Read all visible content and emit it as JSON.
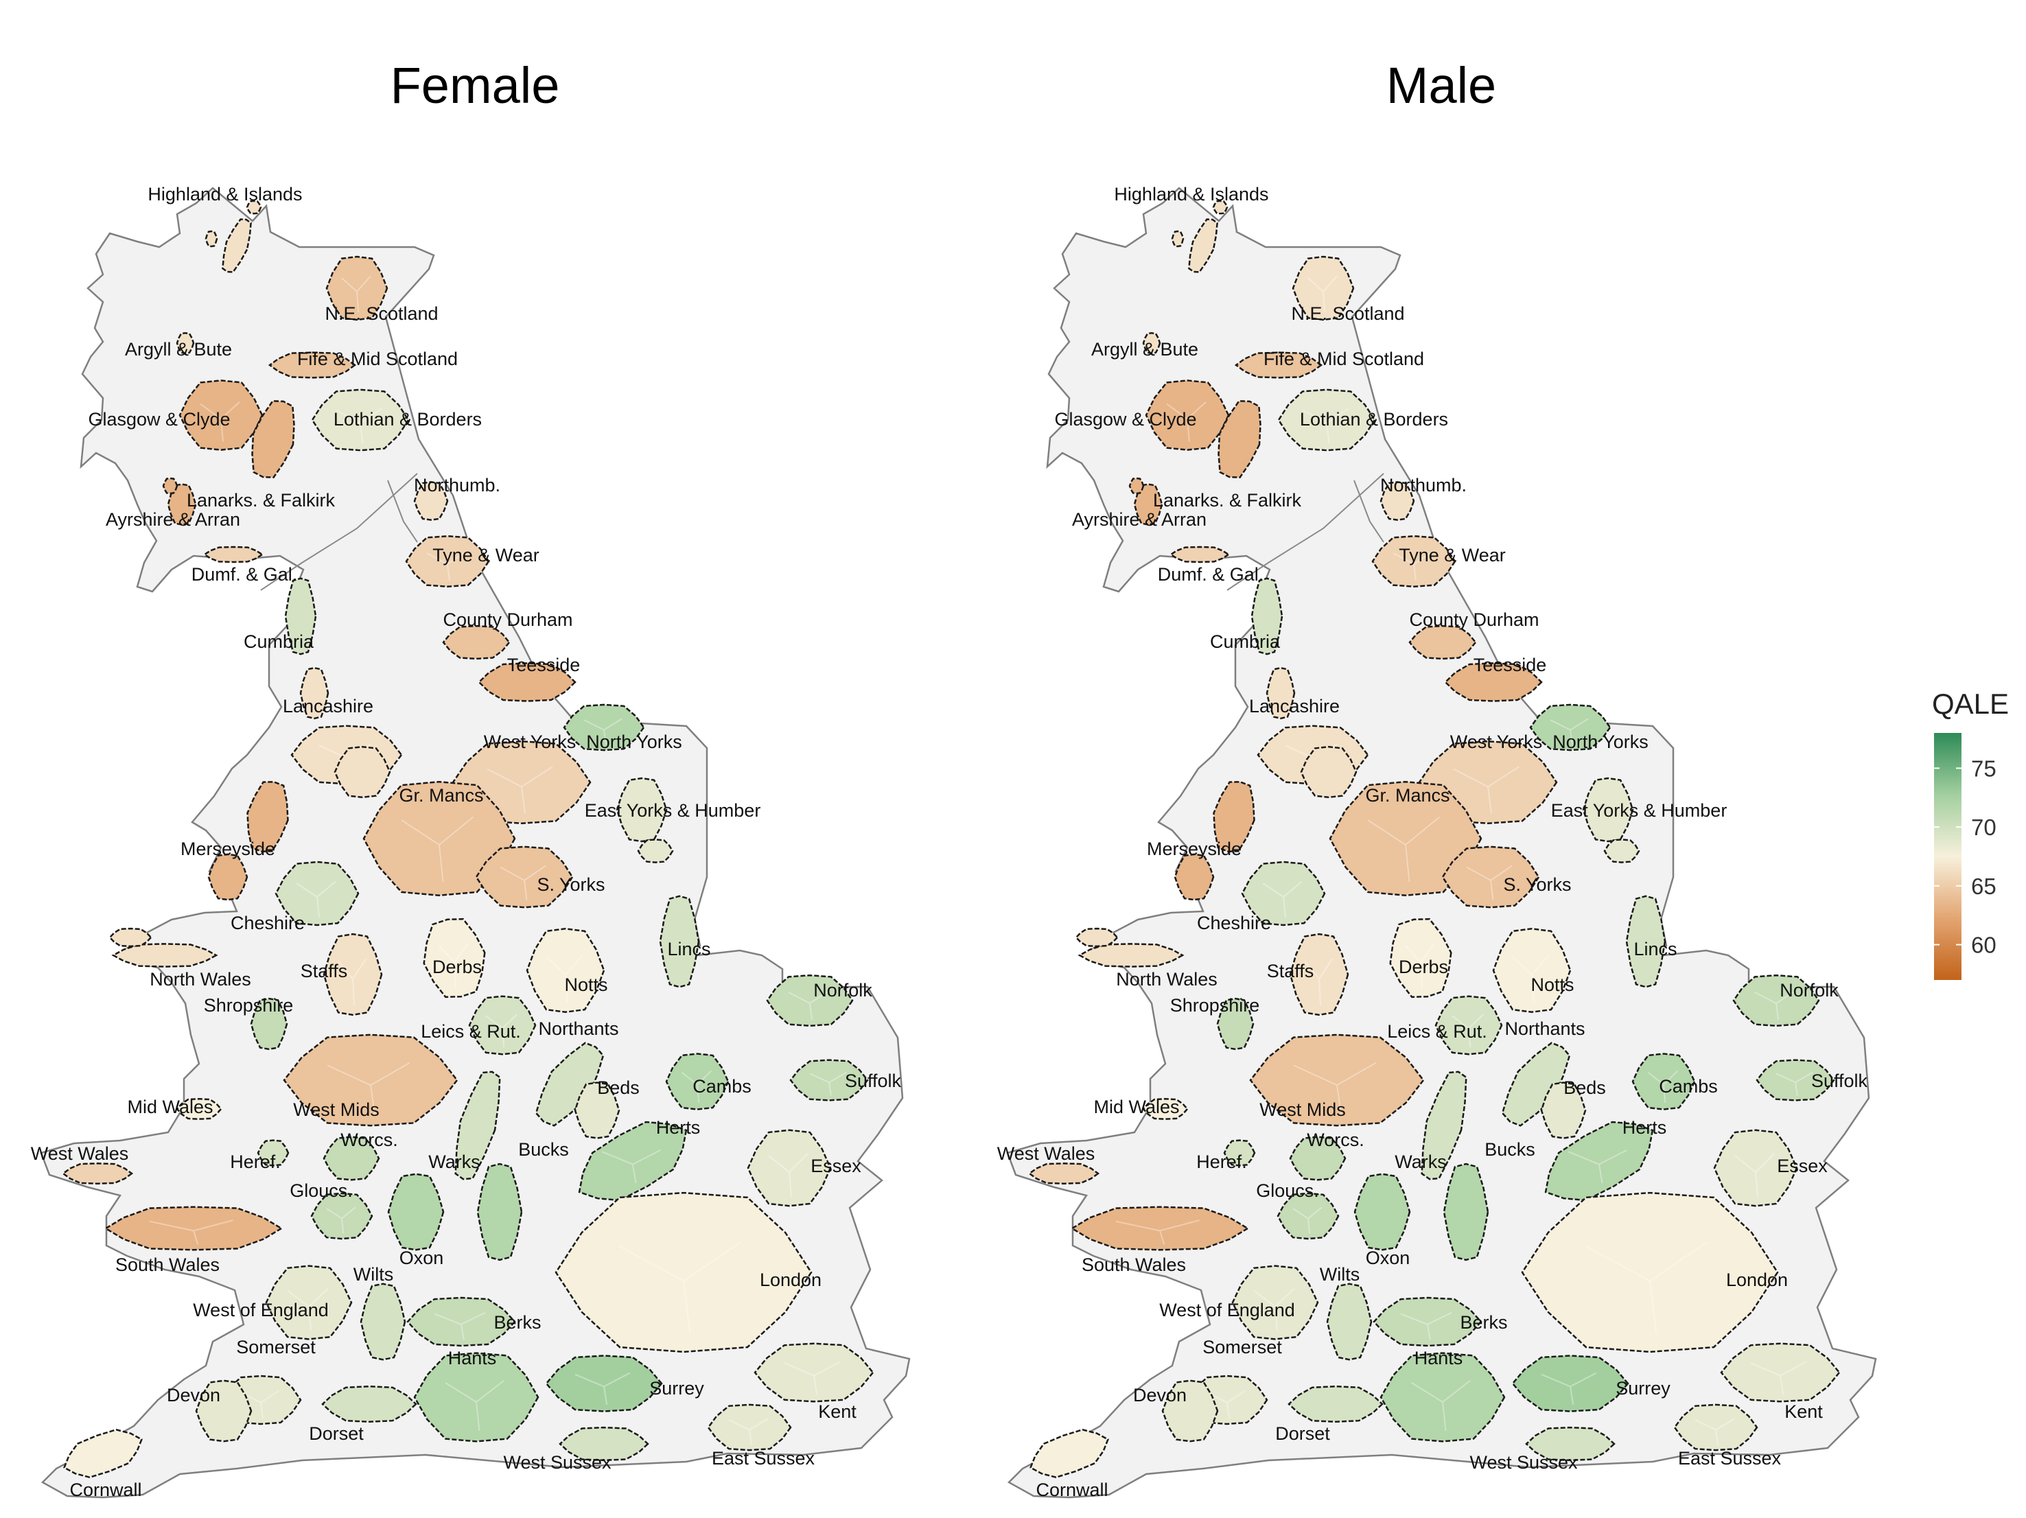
{
  "panels": [
    {
      "key": "female",
      "title": "Female"
    },
    {
      "key": "male",
      "title": "Male"
    }
  ],
  "legend": {
    "title": "QALE",
    "ticks": [
      75,
      70,
      65,
      60
    ],
    "range": [
      57,
      78
    ],
    "colors": {
      "low": "#c2631a",
      "mid_low": "#e3a572",
      "mid": "#f7f0dc",
      "mid_high": "#a3cf9f",
      "high": "#2e8b57"
    }
  },
  "regions": [
    {
      "name": "Highland & Islands",
      "female": 66,
      "male": 66
    },
    {
      "name": "N.E. Scotland",
      "female": 64,
      "male": 66
    },
    {
      "name": "Argyll & Bute",
      "female": 66,
      "male": 66
    },
    {
      "name": "Fife & Mid Scotland",
      "female": 64,
      "male": 64
    },
    {
      "name": "Glasgow & Clyde",
      "female": 63,
      "male": 63
    },
    {
      "name": "Lothian & Borders",
      "female": 68,
      "male": 68
    },
    {
      "name": "Lanarks. & Falkirk",
      "female": 63,
      "male": 63
    },
    {
      "name": "Ayrshire & Arran",
      "female": 63,
      "male": 63
    },
    {
      "name": "Northumb.",
      "female": 66,
      "male": 66
    },
    {
      "name": "Tyne & Wear",
      "female": 65,
      "male": 65
    },
    {
      "name": "Dumf. & Gal.",
      "female": 65,
      "male": 65
    },
    {
      "name": "County Durham",
      "female": 64,
      "male": 64
    },
    {
      "name": "Cumbria",
      "female": 69,
      "male": 69
    },
    {
      "name": "Teesside",
      "female": 63,
      "male": 63
    },
    {
      "name": "Lancashire",
      "female": 66,
      "male": 66
    },
    {
      "name": "West Yorks",
      "female": 65,
      "male": 65
    },
    {
      "name": "North Yorks",
      "female": 71,
      "male": 71
    },
    {
      "name": "Gr. Mancs",
      "female": 64,
      "male": 64
    },
    {
      "name": "East Yorks & Humber",
      "female": 68,
      "male": 68
    },
    {
      "name": "Merseyside",
      "female": 63,
      "male": 63
    },
    {
      "name": "S. Yorks",
      "female": 64,
      "male": 64
    },
    {
      "name": "Cheshire",
      "female": 69,
      "male": 69
    },
    {
      "name": "Lincs",
      "female": 69,
      "male": 69
    },
    {
      "name": "North Wales",
      "female": 66,
      "male": 66
    },
    {
      "name": "Staffs",
      "female": 66,
      "male": 66
    },
    {
      "name": "Derbs",
      "female": 67,
      "male": 67
    },
    {
      "name": "Notts",
      "female": 67,
      "male": 67
    },
    {
      "name": "Norfolk",
      "female": 70,
      "male": 70
    },
    {
      "name": "Shropshire",
      "female": 70,
      "male": 70
    },
    {
      "name": "Leics & Rut.",
      "female": 69,
      "male": 69
    },
    {
      "name": "Northants",
      "female": 69,
      "male": 69
    },
    {
      "name": "Suffolk",
      "female": 70,
      "male": 70
    },
    {
      "name": "Mid Wales",
      "female": 67,
      "male": 67
    },
    {
      "name": "West Mids",
      "female": 64,
      "male": 64
    },
    {
      "name": "Beds",
      "female": 68,
      "male": 68
    },
    {
      "name": "Cambs",
      "female": 71,
      "male": 71
    },
    {
      "name": "West Wales",
      "female": 65,
      "male": 65
    },
    {
      "name": "Worcs.",
      "female": 70,
      "male": 70
    },
    {
      "name": "Herts",
      "female": 71,
      "male": 71
    },
    {
      "name": "Heref.",
      "female": 69,
      "male": 69
    },
    {
      "name": "Warks",
      "female": 69,
      "male": 69
    },
    {
      "name": "Bucks",
      "female": 71,
      "male": 71
    },
    {
      "name": "Essex",
      "female": 68,
      "male": 68
    },
    {
      "name": "Gloucs.",
      "female": 70,
      "male": 70
    },
    {
      "name": "South Wales",
      "female": 63,
      "male": 63
    },
    {
      "name": "Oxon",
      "female": 71,
      "male": 71
    },
    {
      "name": "Wilts",
      "female": 69,
      "male": 69
    },
    {
      "name": "London",
      "female": 67,
      "male": 67
    },
    {
      "name": "West of England",
      "female": 68,
      "male": 68
    },
    {
      "name": "Berks",
      "female": 70,
      "male": 70
    },
    {
      "name": "Somerset",
      "female": 68,
      "male": 68
    },
    {
      "name": "Hants",
      "female": 71,
      "male": 71
    },
    {
      "name": "Surrey",
      "female": 72,
      "male": 72
    },
    {
      "name": "Devon",
      "female": 68,
      "male": 68
    },
    {
      "name": "Kent",
      "female": 68,
      "male": 68
    },
    {
      "name": "Dorset",
      "female": 69,
      "male": 69
    },
    {
      "name": "West Sussex",
      "female": 69,
      "male": 69
    },
    {
      "name": "East Sussex",
      "female": 68,
      "male": 68
    },
    {
      "name": "Cornwall",
      "female": 67,
      "male": 67
    }
  ]
}
